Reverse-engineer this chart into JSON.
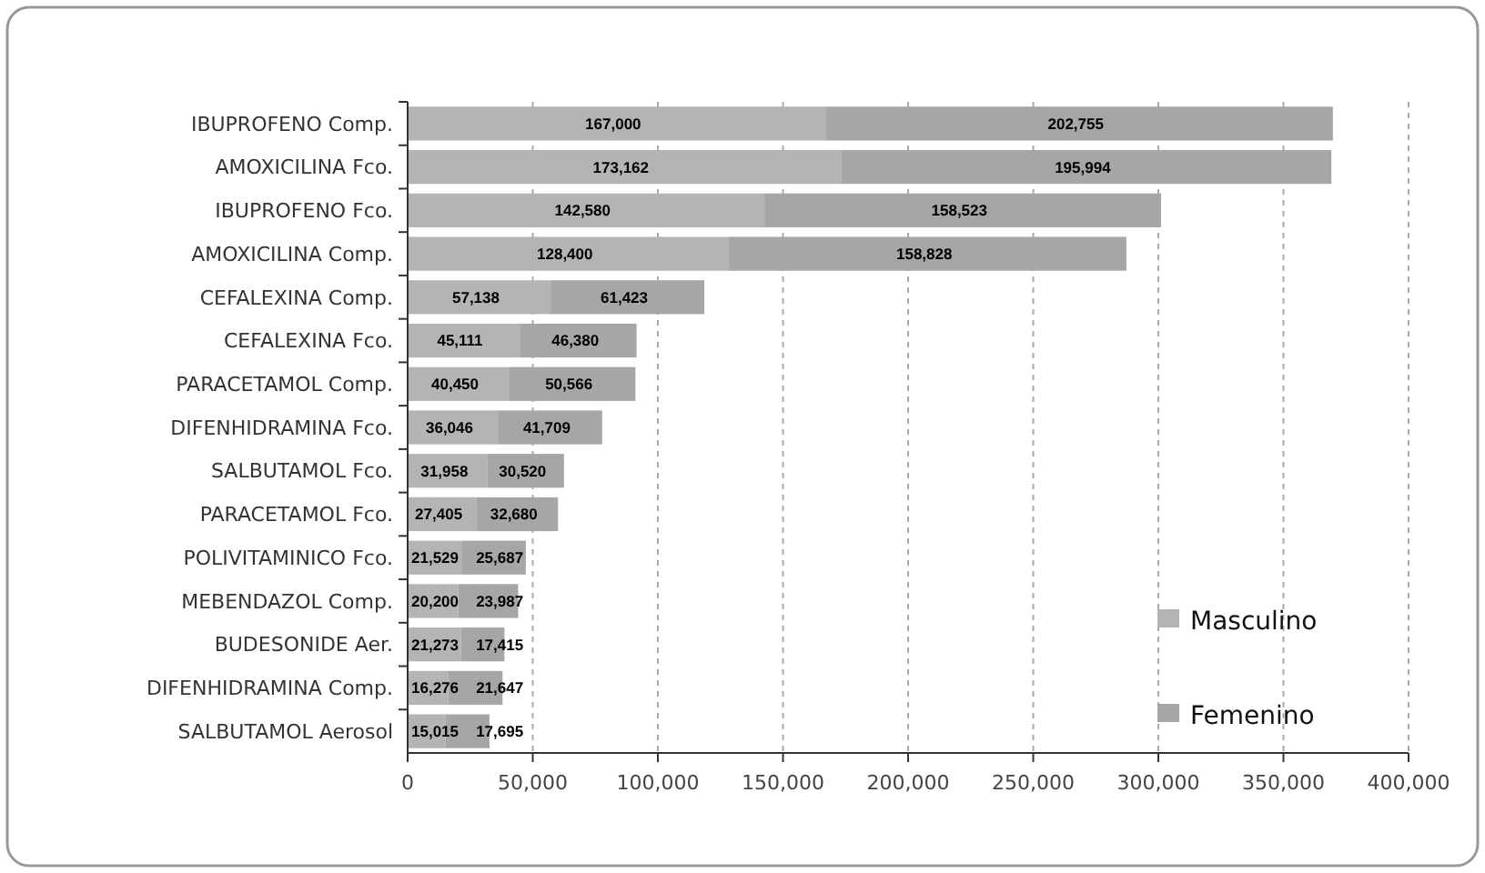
{
  "chart_data": {
    "type": "bar",
    "orientation": "horizontal",
    "stacked": true,
    "categories": [
      "IBUPROFENO Comp.",
      "AMOXICILINA Fco.",
      "IBUPROFENO Fco.",
      "AMOXICILINA Comp.",
      "CEFALEXINA Comp.",
      "CEFALEXINA Fco.",
      "PARACETAMOL Comp.",
      "DIFENHIDRAMINA Fco.",
      "SALBUTAMOL Fco.",
      "PARACETAMOL Fco.",
      "POLIVITAMINICO Fco.",
      "MEBENDAZOL Comp.",
      "BUDESONIDE Aer.",
      "DIFENHIDRAMINA Comp.",
      "SALBUTAMOL Aerosol"
    ],
    "series": [
      {
        "name": "Masculino",
        "color": "#b4b4b4",
        "values": [
          167000,
          173162,
          142580,
          128400,
          57138,
          45111,
          40450,
          36046,
          31958,
          27405,
          21529,
          20200,
          21273,
          16276,
          15015
        ],
        "value_labels": [
          "167,000",
          "173,162",
          "142,580",
          "128,400",
          "57,138",
          "45,111",
          "40,450",
          "36,046",
          "31,958",
          "27,405",
          "21,529",
          "20,200",
          "21,273",
          "16,276",
          "15,015"
        ]
      },
      {
        "name": "Femenino",
        "color": "#a6a6a6",
        "values": [
          202755,
          195994,
          158523,
          158828,
          61423,
          46380,
          50566,
          41709,
          30520,
          32680,
          25687,
          23987,
          17415,
          21647,
          17695
        ],
        "value_labels": [
          "202,755",
          "195,994",
          "158,523",
          "158,828",
          "61,423",
          "46,380",
          "50,566",
          "41,709",
          "30,520",
          "32,680",
          "25,687",
          "23,987",
          "17,415",
          "21,647",
          "17,695"
        ]
      }
    ],
    "xlim": [
      0,
      400000
    ],
    "xticks": [
      {
        "value": 0,
        "label": "0"
      },
      {
        "value": 50000,
        "label": "50,000"
      },
      {
        "value": 100000,
        "label": "100,000"
      },
      {
        "value": 150000,
        "label": "150,000"
      },
      {
        "value": 200000,
        "label": "200,000"
      },
      {
        "value": 250000,
        "label": "250,000"
      },
      {
        "value": 300000,
        "label": "300,000"
      },
      {
        "value": 350000,
        "label": "350,000"
      },
      {
        "value": 400000,
        "label": "400,000"
      }
    ],
    "grid": "x",
    "legend": "bottom right"
  }
}
